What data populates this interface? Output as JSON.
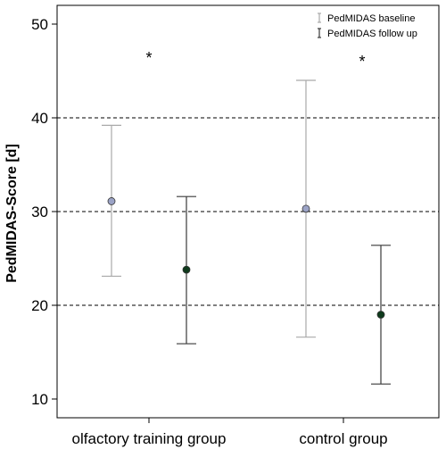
{
  "chart_data": {
    "type": "errorbar",
    "ylabel": "PedMIDAS-Score [d]",
    "ylim": [
      8,
      52
    ],
    "yticks": [
      10,
      20,
      30,
      40,
      50
    ],
    "reference_lines": [
      20,
      30,
      40
    ],
    "categories": [
      "olfactory training group",
      "control group"
    ],
    "series": [
      {
        "name": "PedMIDAS baseline",
        "color": "#a9a9a9",
        "marker_color": "#9ba3c6",
        "points": [
          {
            "category": "olfactory training group",
            "mean": 31.1,
            "low": 23.1,
            "high": 39.2
          },
          {
            "category": "control group",
            "mean": 30.3,
            "low": 16.6,
            "high": 44.0
          }
        ]
      },
      {
        "name": "PedMIDAS follow up",
        "color": "#3a3a3a",
        "marker_color": "#0f3a1c",
        "points": [
          {
            "category": "olfactory training group",
            "mean": 23.8,
            "low": 15.9,
            "high": 31.6
          },
          {
            "category": "control group",
            "mean": 19.0,
            "low": 11.6,
            "high": 26.4
          }
        ]
      }
    ],
    "annotations": [
      "*",
      "*"
    ]
  }
}
